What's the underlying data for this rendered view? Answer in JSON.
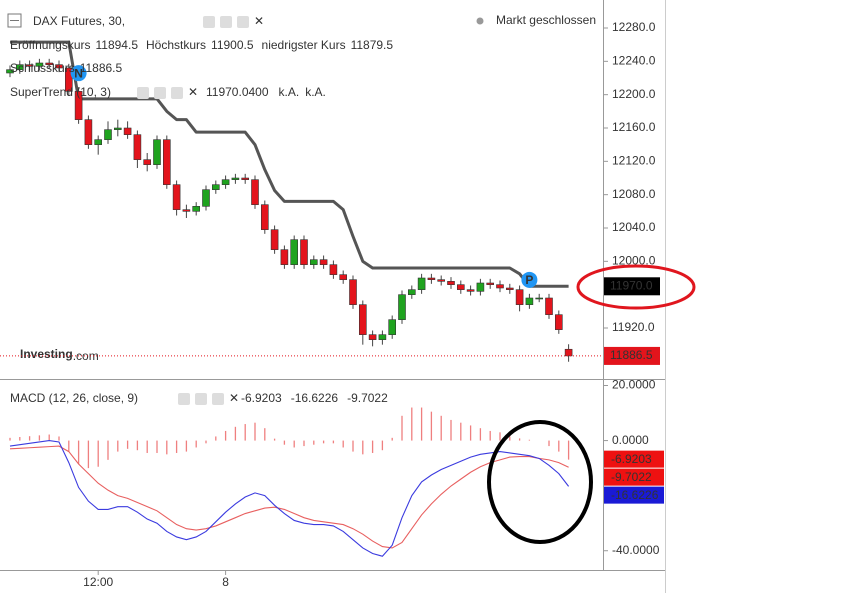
{
  "chart_data": [
    {
      "type": "candlestick",
      "title": "DAX Futures, 30,",
      "status": "Markt geschlossen",
      "watermark": "Investing",
      "watermark_suffix": ".com",
      "ohlc_labels": {
        "open": "Eröffnungskurs",
        "high": "Höchstkurs",
        "low": "niedrigster Kurs",
        "close": "Schlusskurs"
      },
      "categories": [
        null,
        null,
        null,
        null,
        null,
        null,
        null,
        null,
        null,
        "12:00",
        null,
        null,
        null,
        null,
        null,
        null,
        null,
        null,
        null,
        null,
        null,
        null,
        "8",
        null,
        null,
        null,
        null,
        null,
        null,
        null,
        null,
        null,
        null,
        null,
        null,
        null,
        null,
        null,
        null,
        null,
        null,
        null,
        null,
        null,
        null,
        null,
        null,
        null,
        null,
        null,
        null,
        null,
        null,
        null,
        null,
        null,
        null,
        null
      ],
      "open": [
        12226,
        12230,
        12236,
        12234,
        12238,
        12236,
        12232,
        12204,
        12170,
        12140,
        12146,
        12158,
        12160,
        12152,
        12122,
        12116,
        12146,
        12092,
        12062,
        12060,
        12066,
        12086,
        12092,
        12098,
        12100,
        12098,
        12068,
        12038,
        12014,
        11996,
        12026,
        11996,
        12002,
        11996,
        11984,
        11978,
        11948,
        11912,
        11906,
        11912,
        11930,
        11960,
        11966,
        11980,
        11978,
        11976,
        11972,
        11966,
        11964,
        11974,
        11972,
        11968,
        11966,
        11948,
        11956,
        11956,
        11936,
        11894.5
      ],
      "high": [
        12235,
        12241,
        12241,
        12243,
        12243,
        12241,
        12237,
        12209,
        12175,
        12151,
        12168,
        12170,
        12168,
        12157,
        12130,
        12151,
        12151,
        12097,
        12068,
        12071,
        12091,
        12097,
        12103,
        12105,
        12105,
        12103,
        12073,
        12043,
        12019,
        12031,
        12031,
        12007,
        12007,
        12001,
        11989,
        11983,
        11953,
        11917,
        11917,
        11935,
        11965,
        11971,
        11985,
        11985,
        11983,
        11981,
        11977,
        11971,
        11979,
        11979,
        11977,
        11973,
        11971,
        11961,
        11961,
        11961,
        11941,
        11900.5
      ],
      "low": [
        12221,
        12225,
        12229,
        12229,
        12231,
        12227,
        12199,
        12165,
        12135,
        12128,
        12141,
        12150,
        12147,
        12112,
        12108,
        12111,
        12087,
        12055,
        12052,
        12055,
        12061,
        12081,
        12087,
        12093,
        12093,
        12063,
        12033,
        12009,
        11991,
        11991,
        11991,
        11991,
        11991,
        11979,
        11973,
        11943,
        11900,
        11898,
        11900,
        11907,
        11925,
        11955,
        11961,
        11973,
        11971,
        11967,
        11961,
        11959,
        11959,
        11967,
        11963,
        11961,
        11940,
        11943,
        11951,
        11931,
        11913,
        11879.5
      ],
      "close": [
        12230,
        12236,
        12234,
        12238,
        12236,
        12232,
        12204,
        12170,
        12140,
        12146,
        12158,
        12160,
        12152,
        12122,
        12116,
        12146,
        12092,
        12062,
        12060,
        12066,
        12086,
        12092,
        12098,
        12100,
        12098,
        12068,
        12038,
        12014,
        11996,
        12026,
        11996,
        12002,
        11996,
        11984,
        11978,
        11948,
        11912,
        11906,
        11912,
        11930,
        11960,
        11966,
        11980,
        11978,
        11976,
        11972,
        11966,
        11964,
        11974,
        11972,
        11968,
        11966,
        11948,
        11956,
        11956,
        11936,
        11918,
        11886.5
      ],
      "up_color": "#1fa31f",
      "down_color": "#e3141c",
      "close_line_color": "#e3141c",
      "ylim": [
        11860,
        12313.6
      ],
      "yticks": [
        {
          "value": 12280,
          "label": "12280.0"
        },
        {
          "value": 12240,
          "label": "12240.0"
        },
        {
          "value": 12200,
          "label": "12200.0"
        },
        {
          "value": 12160,
          "label": "12160.0"
        },
        {
          "value": 12120,
          "label": "12120.0"
        },
        {
          "value": 12080,
          "label": "12080.0"
        },
        {
          "value": 12040,
          "label": "12040.0"
        },
        {
          "value": 12000,
          "label": "12000.0"
        },
        {
          "value": 11920,
          "label": "11920.0"
        }
      ],
      "overlay": {
        "name": "SuperTrend (10, 3)",
        "color": "#555555",
        "values": [
          12263,
          12263,
          12263,
          12263,
          12263,
          12263,
          12263,
          12195,
          12195,
          12195,
          12195,
          12195,
          12195,
          12195,
          12195,
          12195,
          12180,
          12170,
          12170,
          12155,
          12155,
          12155,
          12155,
          12155,
          12155,
          12140,
          12110,
          12085,
          12072,
          12072,
          12072,
          12072,
          12072,
          12072,
          12062,
          12030,
          12000,
          11992,
          11992,
          11992,
          11992,
          11992,
          11992,
          11992,
          11992,
          11992,
          11992,
          11992,
          11992,
          11992,
          11992,
          11992,
          11985,
          11970.04,
          11970.04,
          11970.04,
          11970.04,
          11970.04
        ],
        "legend_value_label": "11970.0400",
        "axis_value_label": "11970.0",
        "extra_labels": [
          "k.A.",
          "k.A."
        ]
      },
      "markers": [
        {
          "label": "N",
          "index": 7
        },
        {
          "label": "P",
          "index": 53
        }
      ]
    },
    {
      "type": "macd",
      "title": "MACD (12, 26, close, 9)",
      "ylim": [
        -47,
        22
      ],
      "yticks": [
        {
          "value": 20,
          "label": "20.0000"
        },
        {
          "value": 0,
          "label": "0.0000"
        },
        {
          "value": -40,
          "label": "-40.0000"
        }
      ],
      "histogram": {
        "color": "#ef7f7f",
        "values": [
          1,
          1.3,
          1.6,
          1.9,
          2.2,
          1.5,
          -4,
          -8.5,
          -10,
          -9.5,
          -7,
          -4,
          -3,
          -3.5,
          -4.5,
          -4.5,
          -5,
          -4.5,
          -4,
          -2.5,
          -1,
          1.5,
          3.5,
          5,
          6,
          6.5,
          4.5,
          0.7,
          -1.5,
          -2.5,
          -2,
          -1.5,
          -1,
          -1,
          -2.5,
          -4,
          -5,
          -4.5,
          -3.5,
          1,
          9,
          12,
          12,
          10.5,
          9,
          7.5,
          6.5,
          5.5,
          4.5,
          3.5,
          3,
          1.5,
          0.8,
          0.3,
          0,
          -2,
          -4,
          -6.9203
        ],
        "tag_color": "#ee1111"
      },
      "macd": {
        "color": "#3b3bdf",
        "values": [
          -2,
          -1.5,
          -1,
          -0.5,
          0,
          -0.5,
          -8,
          -17,
          -22,
          -25,
          -25,
          -24,
          -24,
          -26,
          -28.5,
          -30,
          -33,
          -35,
          -36,
          -35,
          -33,
          -29.5,
          -26,
          -23,
          -20.5,
          -19,
          -20,
          -23.5,
          -26.5,
          -29,
          -30,
          -30.5,
          -30.5,
          -31,
          -33,
          -36,
          -39,
          -41,
          -42,
          -38,
          -28,
          -20,
          -15,
          -12.5,
          -10.5,
          -9,
          -7.5,
          -6,
          -5,
          -4.5,
          -4,
          -4.5,
          -5,
          -5.5,
          -6.5,
          -9,
          -12,
          -16.6226
        ],
        "tag_color": "#1a1ad6"
      },
      "signal": {
        "color": "#e86060",
        "values": [
          -3,
          -2.8,
          -2.6,
          -2.4,
          -2.2,
          -2,
          -4,
          -8.5,
          -12,
          -15.5,
          -18,
          -20,
          -21,
          -22.5,
          -24,
          -25.5,
          -28,
          -30.5,
          -32,
          -32.5,
          -32,
          -31,
          -29.5,
          -28,
          -26.5,
          -25.5,
          -24.5,
          -24.2,
          -25,
          -26.5,
          -28,
          -29,
          -29.5,
          -30,
          -30.5,
          -32,
          -34,
          -36.5,
          -38.5,
          -39,
          -37,
          -32,
          -27,
          -23,
          -19.5,
          -16.5,
          -14,
          -11.5,
          -9.5,
          -8,
          -7,
          -6,
          -5.8,
          -5.8,
          -6.5,
          -7,
          -8,
          -9.7022
        ],
        "tag_color": "#ee1111"
      }
    }
  ]
}
